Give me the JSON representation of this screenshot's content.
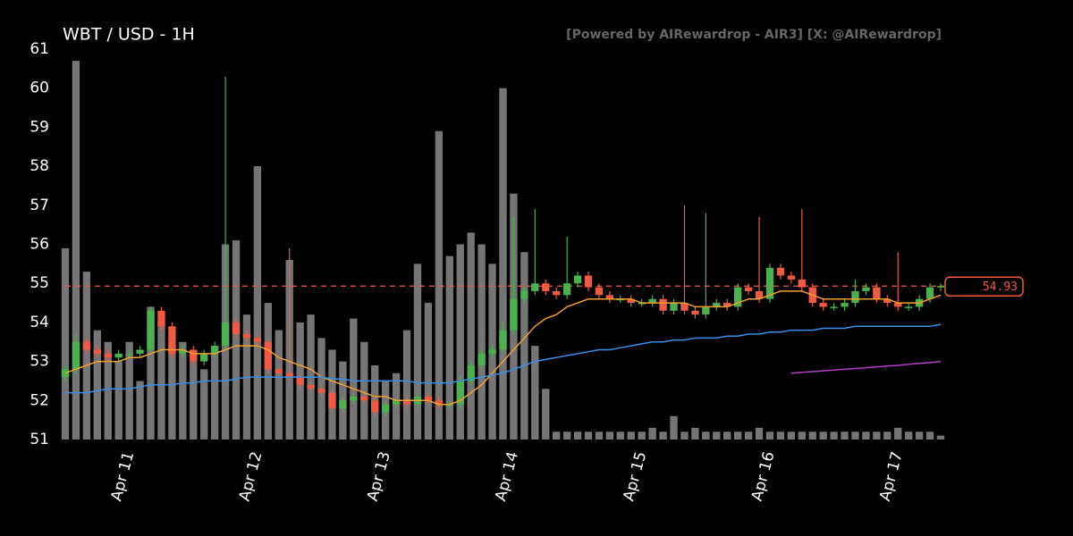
{
  "chart_data": {
    "type": "candlestick",
    "title": "WBT / USD - 1H",
    "subtitle": "[Powered by AIRewardrop - AIR3] [X: @AIRewardrop]",
    "up_color": "#4caf50",
    "down_color": "#ef5a45",
    "volume_color": "#8a8a8a",
    "ylim": [
      51,
      61
    ],
    "yticks": [
      51,
      52,
      53,
      54,
      55,
      56,
      57,
      58,
      59,
      60,
      61
    ],
    "xlim": [
      0,
      82
    ],
    "xticks": [
      {
        "value": 6,
        "label": "Apr 11"
      },
      {
        "value": 18,
        "label": "Apr 12"
      },
      {
        "value": 30,
        "label": "Apr 13"
      },
      {
        "value": 42,
        "label": "Apr 14"
      },
      {
        "value": 54,
        "label": "Apr 15"
      },
      {
        "value": 66,
        "label": "Apr 16"
      },
      {
        "value": 78,
        "label": "Apr 17"
      }
    ],
    "open": [
      52.6,
      52.8,
      53.5,
      53.3,
      53.2,
      53.1,
      53.2,
      53.2,
      53.3,
      54.3,
      53.9,
      53.2,
      53.3,
      53.0,
      53.2,
      53.4,
      54.0,
      53.7,
      53.6,
      53.5,
      52.8,
      52.7,
      52.6,
      52.4,
      52.3,
      52.2,
      51.8,
      52.0,
      52.1,
      52.0,
      51.7,
      51.9,
      52.0,
      51.9,
      52.1,
      52.0,
      51.9,
      51.9,
      52.5,
      52.9,
      53.2,
      53.3,
      53.8,
      54.6,
      54.8,
      55.0,
      54.8,
      54.7,
      55.0,
      55.2,
      54.9,
      54.7,
      54.6,
      54.6,
      54.5,
      54.5,
      54.6,
      54.3,
      54.5,
      54.3,
      54.2,
      54.4,
      54.5,
      54.4,
      54.9,
      54.8,
      54.6,
      55.4,
      55.2,
      55.1,
      54.9,
      54.5,
      54.4,
      54.4,
      54.5,
      54.8,
      54.9,
      54.6,
      54.5,
      54.4,
      54.4,
      54.6,
      54.9
    ],
    "high": [
      52.9,
      53.7,
      53.6,
      53.4,
      53.3,
      53.3,
      53.3,
      53.4,
      54.4,
      54.4,
      54.0,
      53.4,
      53.4,
      53.3,
      53.5,
      60.3,
      54.1,
      53.8,
      53.7,
      53.6,
      52.9,
      55.9,
      52.7,
      52.5,
      52.4,
      52.3,
      52.1,
      52.2,
      52.2,
      52.1,
      52.0,
      52.1,
      52.1,
      52.2,
      52.2,
      52.1,
      52.0,
      52.6,
      53.0,
      53.3,
      53.4,
      54.0,
      56.7,
      54.9,
      56.9,
      55.1,
      54.9,
      56.2,
      55.3,
      55.3,
      55.0,
      54.8,
      54.7,
      54.7,
      54.6,
      54.7,
      54.7,
      54.6,
      57.0,
      54.4,
      56.8,
      54.6,
      54.6,
      55.0,
      55.0,
      56.7,
      55.5,
      55.5,
      55.3,
      56.9,
      55.0,
      54.6,
      54.5,
      54.6,
      55.1,
      55.0,
      55.0,
      54.7,
      55.8,
      54.5,
      54.7,
      55.0,
      55.0
    ],
    "low": [
      52.5,
      52.7,
      53.2,
      53.1,
      53.0,
      53.0,
      53.1,
      53.1,
      53.2,
      53.8,
      53.1,
      53.1,
      52.9,
      52.9,
      53.1,
      53.3,
      53.6,
      53.5,
      53.4,
      52.7,
      52.6,
      52.5,
      52.3,
      52.2,
      52.1,
      51.7,
      51.7,
      51.9,
      51.9,
      51.6,
      51.6,
      51.8,
      51.8,
      51.8,
      51.9,
      51.8,
      51.8,
      51.8,
      52.4,
      52.8,
      53.1,
      53.2,
      53.7,
      54.5,
      54.7,
      54.7,
      54.6,
      54.6,
      54.9,
      54.8,
      54.6,
      54.5,
      54.5,
      54.4,
      54.4,
      54.4,
      54.2,
      54.2,
      54.2,
      54.1,
      54.1,
      54.3,
      54.3,
      54.3,
      54.7,
      54.5,
      54.5,
      55.1,
      55.0,
      54.8,
      54.4,
      54.3,
      54.3,
      54.3,
      54.4,
      54.7,
      54.5,
      54.4,
      54.3,
      54.3,
      54.3,
      54.5,
      54.8
    ],
    "close": [
      52.8,
      53.5,
      53.3,
      53.2,
      53.1,
      53.2,
      53.2,
      53.3,
      54.3,
      53.9,
      53.2,
      53.3,
      53.0,
      53.2,
      53.4,
      54.0,
      53.7,
      53.6,
      53.5,
      52.8,
      52.7,
      52.6,
      52.4,
      52.3,
      52.2,
      51.8,
      52.0,
      52.1,
      52.0,
      51.7,
      51.9,
      52.0,
      51.9,
      52.1,
      52.0,
      51.9,
      51.9,
      52.5,
      52.9,
      53.2,
      53.3,
      53.8,
      54.6,
      54.8,
      55.0,
      54.8,
      54.7,
      55.0,
      55.2,
      54.9,
      54.7,
      54.6,
      54.6,
      54.5,
      54.5,
      54.6,
      54.3,
      54.5,
      54.3,
      54.2,
      54.4,
      54.5,
      54.4,
      54.9,
      54.8,
      54.6,
      55.4,
      55.2,
      55.1,
      54.9,
      54.5,
      54.4,
      54.4,
      54.5,
      54.8,
      54.9,
      54.6,
      54.5,
      54.4,
      54.4,
      54.6,
      54.9,
      54.93
    ],
    "volume": [
      49,
      97,
      43,
      28,
      25,
      20,
      25,
      15,
      34,
      30,
      24,
      25,
      20,
      18,
      24,
      50,
      51,
      32,
      70,
      35,
      28,
      46,
      30,
      32,
      26,
      23,
      20,
      31,
      25,
      19,
      15,
      17,
      28,
      45,
      35,
      79,
      47,
      50,
      53,
      50,
      45,
      90,
      63,
      48,
      24,
      13,
      2,
      2,
      2,
      2,
      2,
      2,
      2,
      2,
      2,
      3,
      2,
      6,
      2,
      3,
      2,
      2,
      2,
      2,
      2,
      3,
      2,
      2,
      2,
      2,
      2,
      2,
      2,
      2,
      2,
      2,
      2,
      2,
      3,
      2,
      2,
      2,
      1
    ],
    "vlim": [
      0,
      100
    ],
    "lines": [
      {
        "color": "#f0a030",
        "values": [
          52.7,
          52.8,
          52.9,
          53.0,
          53.0,
          53.0,
          53.1,
          53.1,
          53.2,
          53.3,
          53.3,
          53.3,
          53.2,
          53.2,
          53.2,
          53.3,
          53.4,
          53.4,
          53.4,
          53.3,
          53.1,
          53.0,
          52.9,
          52.8,
          52.6,
          52.5,
          52.4,
          52.3,
          52.2,
          52.1,
          52.1,
          52.0,
          52.0,
          52.0,
          52.0,
          51.9,
          51.9,
          52.0,
          52.2,
          52.4,
          52.7,
          53.0,
          53.3,
          53.6,
          53.9,
          54.1,
          54.2,
          54.4,
          54.5,
          54.6,
          54.6,
          54.6,
          54.6,
          54.6,
          54.5,
          54.5,
          54.5,
          54.5,
          54.5,
          54.4,
          54.4,
          54.4,
          54.4,
          54.5,
          54.6,
          54.6,
          54.7,
          54.8,
          54.8,
          54.8,
          54.7,
          54.6,
          54.6,
          54.6,
          54.6,
          54.6,
          54.6,
          54.6,
          54.5,
          54.5,
          54.5,
          54.6,
          54.7
        ]
      },
      {
        "color": "#3a8ee6",
        "values": [
          52.2,
          52.2,
          52.2,
          52.25,
          52.3,
          52.3,
          52.3,
          52.35,
          52.4,
          52.4,
          52.4,
          52.45,
          52.45,
          52.5,
          52.5,
          52.5,
          52.55,
          52.6,
          52.6,
          52.6,
          52.6,
          52.6,
          52.6,
          52.6,
          52.6,
          52.55,
          52.55,
          52.5,
          52.5,
          52.5,
          52.5,
          52.5,
          52.5,
          52.45,
          52.45,
          52.45,
          52.45,
          52.5,
          52.55,
          52.6,
          52.65,
          52.7,
          52.8,
          52.9,
          53.0,
          53.05,
          53.1,
          53.15,
          53.2,
          53.25,
          53.3,
          53.3,
          53.35,
          53.4,
          53.45,
          53.5,
          53.5,
          53.55,
          53.55,
          53.6,
          53.6,
          53.6,
          53.65,
          53.65,
          53.7,
          53.7,
          53.75,
          53.75,
          53.8,
          53.8,
          53.8,
          53.85,
          53.85,
          53.85,
          53.9,
          53.9,
          53.9,
          53.9,
          53.9,
          53.9,
          53.9,
          53.9,
          53.95
        ]
      },
      {
        "color": "#b040c0",
        "values": [
          null,
          null,
          null,
          null,
          null,
          null,
          null,
          null,
          null,
          null,
          null,
          null,
          null,
          null,
          null,
          null,
          null,
          null,
          null,
          null,
          null,
          null,
          null,
          null,
          null,
          null,
          null,
          null,
          null,
          null,
          null,
          null,
          null,
          null,
          null,
          null,
          null,
          null,
          null,
          null,
          null,
          null,
          null,
          null,
          null,
          null,
          null,
          null,
          null,
          null,
          null,
          null,
          null,
          null,
          null,
          null,
          null,
          null,
          null,
          null,
          null,
          null,
          null,
          null,
          null,
          null,
          null,
          null,
          52.7,
          52.72,
          52.74,
          52.76,
          52.78,
          52.8,
          52.82,
          52.84,
          52.86,
          52.88,
          52.9,
          52.93,
          52.95,
          52.97,
          53.0
        ]
      }
    ],
    "last_price": 54.93,
    "last_price_color": "#ef5a45"
  }
}
